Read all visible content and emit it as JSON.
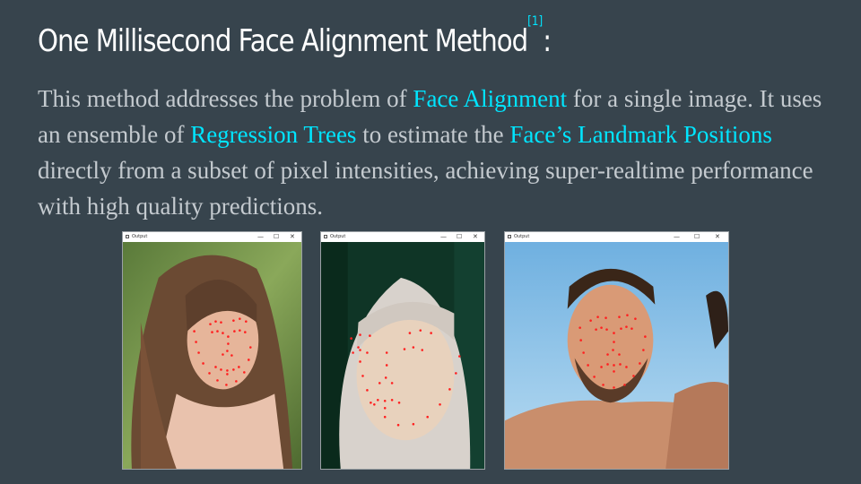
{
  "slide": {
    "title": "One Millisecond Face Alignment Method",
    "citation": "[1]",
    "title_suffix": ":",
    "body": {
      "t1": "This method addresses the problem of ",
      "h1": "Face Alignment",
      "t2": " for a single image. It uses an ensemble of ",
      "h2": "Regression Trees",
      "t3": " to estimate the ",
      "h3": "Face’s Landmark Positions",
      "t4": " directly from a subset of pixel intensities, achieving super-realtime performance with high quality predictions."
    }
  },
  "windows": [
    {
      "title": "Output",
      "minimize": "—",
      "maximize": "☐",
      "close": "✕"
    },
    {
      "title": "Output",
      "minimize": "—",
      "maximize": "☐",
      "close": "✕"
    },
    {
      "title": "Output",
      "minimize": "—",
      "maximize": "☐",
      "close": "✕"
    }
  ],
  "colors": {
    "background": "#37444d",
    "accent": "#00e5ff",
    "landmark": "#ff2020"
  }
}
